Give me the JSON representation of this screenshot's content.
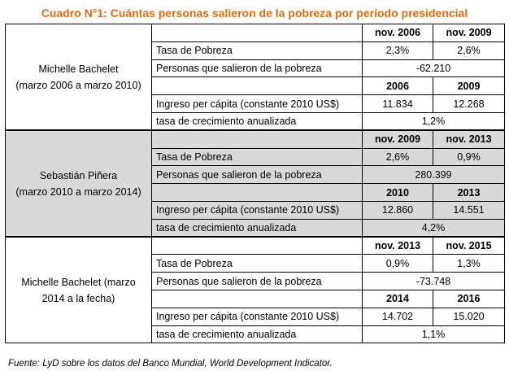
{
  "title": "Cuadro N°1: Cuántas personas salieron de la pobreza por período presidencial",
  "labels": {
    "poverty_rate": "Tasa de Pobreza",
    "people_out": "Personas que salieron de la pobreza",
    "income": "Ingreso per cápita (constante 2010 US$)",
    "growth": "tasa de crecimiento anualizada"
  },
  "periods": [
    {
      "president": "Michelle Bachelet",
      "range": "(marzo 2006 a marzo 2010)",
      "gray": false,
      "poverty_years": [
        "nov. 2006",
        "nov. 2009"
      ],
      "poverty": [
        "2,3%",
        "2,6%"
      ],
      "people_out": "-62.210",
      "income_years": [
        "2006",
        "2009"
      ],
      "income": [
        "11.834",
        "12.268"
      ],
      "growth": "1,2%"
    },
    {
      "president": "Sebastián Piñera",
      "range": "(marzo 2010 a marzo 2014)",
      "gray": true,
      "poverty_years": [
        "nov. 2009",
        "nov. 2013"
      ],
      "poverty": [
        "2,6%",
        "0,9%"
      ],
      "people_out": "280.399",
      "income_years": [
        "2010",
        "2013"
      ],
      "income": [
        "12.860",
        "14.551"
      ],
      "growth": "4,2%"
    },
    {
      "president": "Michelle Bachelet (marzo",
      "range": "2014 a la fecha)",
      "gray": false,
      "poverty_years": [
        "nov. 2013",
        "nov. 2015"
      ],
      "poverty": [
        "0,9%",
        "1,3%"
      ],
      "people_out": "-73.748",
      "income_years": [
        "2014",
        "2016"
      ],
      "income": [
        "14.702",
        "15.020"
      ],
      "growth": "1,1%"
    }
  ],
  "source": "Fuente: LyD sobre los datos del Banco Mundial, World Development Indicator."
}
